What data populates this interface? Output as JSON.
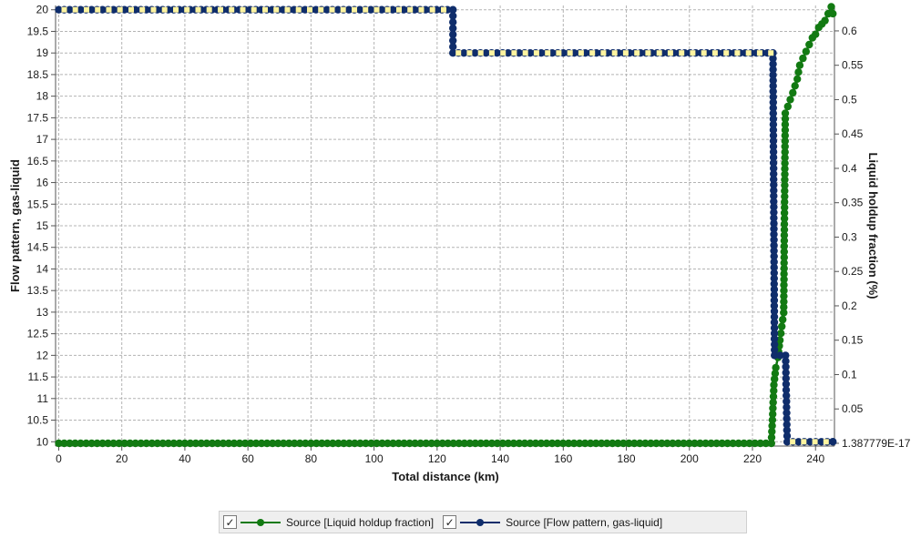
{
  "chart_data": {
    "type": "line",
    "xlabel": "Total distance (km)",
    "ylabel_left": "Flow pattern, gas-liquid",
    "ylabel_right": "Liquid holdup fraction (%)",
    "xlim": [
      -1,
      246
    ],
    "ylim_left": [
      9.9,
      20.1
    ],
    "ylim_right": [
      -0.004,
      0.637
    ],
    "x_ticks": [
      0,
      20,
      40,
      60,
      80,
      100,
      120,
      140,
      160,
      180,
      200,
      220,
      240
    ],
    "y_left_ticks": [
      "10",
      "10.5",
      "11",
      "11.5",
      "12",
      "12.5",
      "13",
      "13.5",
      "14",
      "14.5",
      "15",
      "15.5",
      "16",
      "16.5",
      "17",
      "17.5",
      "18",
      "18.5",
      "19",
      "19.5",
      "20"
    ],
    "y_right_ticks": [
      "1.387779E-17",
      "0.05",
      "0.1",
      "0.15",
      "0.2",
      "0.25",
      "0.3",
      "0.35",
      "0.4",
      "0.45",
      "0.5",
      "0.55",
      "0.6"
    ],
    "grid": true,
    "legend_position": "bottom",
    "series": [
      {
        "name": "Source [Liquid holdup fraction]",
        "color": "#127a12",
        "axis": "right",
        "marker": "circle",
        "x": [
          0,
          226,
          226.8,
          227.4,
          228.1,
          228.7,
          229.3,
          229.9,
          230.4,
          231.2,
          232.0,
          232.8,
          233.5,
          234.2,
          235.0,
          236.0,
          237.0,
          238.0,
          239.0,
          240.0,
          241.0,
          242.0,
          243.0,
          244.0,
          245.0,
          245.5
        ],
        "y": [
          0,
          0,
          0.085,
          0.11,
          0.125,
          0.15,
          0.17,
          0.19,
          0.48,
          0.49,
          0.5,
          0.51,
          0.52,
          0.53,
          0.55,
          0.56,
          0.57,
          0.58,
          0.59,
          0.595,
          0.605,
          0.61,
          0.615,
          0.625,
          0.635,
          0.625
        ]
      },
      {
        "name": "Source [Flow pattern, gas-liquid]",
        "color": "#0f2d6b",
        "axis": "left",
        "marker": "circle",
        "x": [
          0,
          125,
          125,
          226.5,
          227,
          230.5,
          231,
          245.5
        ],
        "y": [
          20,
          20,
          19,
          19,
          12,
          12,
          10,
          10
        ]
      }
    ]
  },
  "legend": {
    "check_mark": "✓",
    "items": [
      "Source [Liquid holdup fraction]",
      "Source [Flow pattern, gas-liquid]"
    ]
  }
}
